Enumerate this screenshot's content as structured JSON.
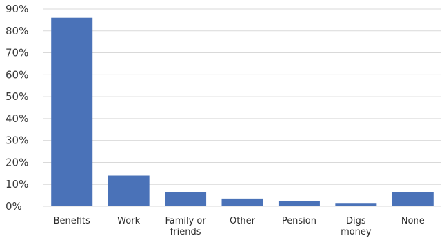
{
  "chart_data": {
    "type": "bar",
    "categories": [
      [
        "Benefits"
      ],
      [
        "Work"
      ],
      [
        "Family or",
        "friends"
      ],
      [
        "Other"
      ],
      [
        "Pension"
      ],
      [
        "Digs",
        "money"
      ],
      [
        "None"
      ]
    ],
    "values": [
      86,
      14,
      6.5,
      3.5,
      2.5,
      1.5,
      6.5
    ],
    "y_ticks": [
      "0%",
      "10%",
      "20%",
      "30%",
      "40%",
      "50%",
      "60%",
      "70%",
      "80%",
      "90%"
    ],
    "ylim": [
      0,
      90
    ],
    "grid": true,
    "bar_color": "#4a72b8"
  }
}
